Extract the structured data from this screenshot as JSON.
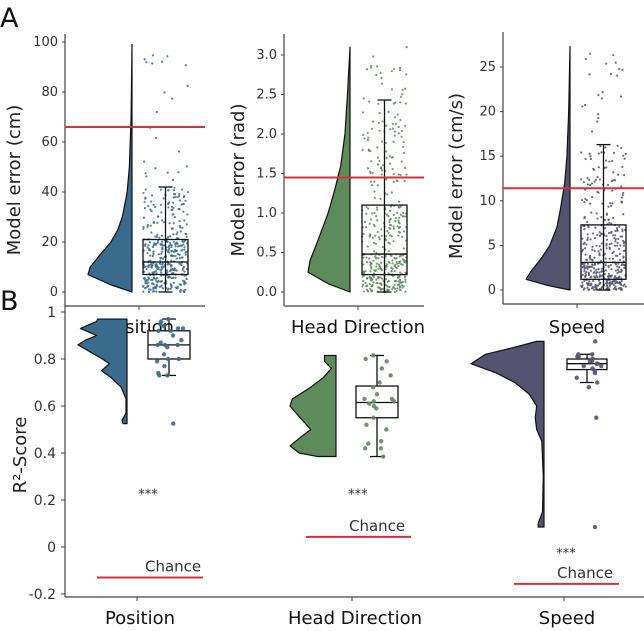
{
  "panel_labels": [
    "A",
    "B"
  ],
  "colors": {
    "position": "#3b6b8c",
    "head_direction": "#5e8b5c",
    "speed": "#54536f",
    "chance": "#d4313c"
  },
  "chart_data": [
    {
      "type": "raincloud",
      "panel": "A",
      "xlabel": "Position",
      "ylabel": "Model error (cm)",
      "yticks": [
        "0",
        "20",
        "40",
        "60",
        "80",
        "100"
      ],
      "ytick_values": [
        0,
        20,
        40,
        60,
        80,
        100
      ],
      "reference_line": 66,
      "box": {
        "whisker_low": 0,
        "q1": 7,
        "median": 12,
        "q3": 21,
        "whisker_high": 42,
        "max": 99
      },
      "density": [
        [
          0,
          0
        ],
        [
          3,
          0.5
        ],
        [
          7,
          1
        ],
        [
          10,
          0.95
        ],
        [
          15,
          0.72
        ],
        [
          20,
          0.48
        ],
        [
          25,
          0.32
        ],
        [
          30,
          0.22
        ],
        [
          40,
          0.11
        ],
        [
          50,
          0.06
        ],
        [
          60,
          0.04
        ],
        [
          70,
          0.02
        ],
        [
          85,
          0.01
        ],
        [
          99,
          0
        ]
      ],
      "color_key": "position"
    },
    {
      "type": "raincloud",
      "panel": "A",
      "xlabel": "Head Direction",
      "ylabel": "Model error (rad)",
      "yticks": [
        "0.0",
        "0.5",
        "1.0",
        "1.5",
        "2.0",
        "2.5",
        "3.0"
      ],
      "ytick_values": [
        0,
        0.5,
        1,
        1.5,
        2,
        2.5,
        3
      ],
      "reference_line": 1.45,
      "box": {
        "whisker_low": 0,
        "q1": 0.22,
        "median": 0.48,
        "q3": 1.1,
        "whisker_high": 2.43,
        "max": 3.1
      },
      "density": [
        [
          0,
          0
        ],
        [
          0.1,
          0.5
        ],
        [
          0.25,
          1
        ],
        [
          0.4,
          0.95
        ],
        [
          0.6,
          0.8
        ],
        [
          0.8,
          0.66
        ],
        [
          1.0,
          0.52
        ],
        [
          1.3,
          0.36
        ],
        [
          1.6,
          0.22
        ],
        [
          2.0,
          0.12
        ],
        [
          2.5,
          0.06
        ],
        [
          3.1,
          0
        ]
      ],
      "color_key": "head_direction"
    },
    {
      "type": "raincloud",
      "panel": "A",
      "xlabel": "Speed",
      "ylabel": "Model error (cm/s)",
      "yticks": [
        "0",
        "5",
        "10",
        "15",
        "20",
        "25"
      ],
      "ytick_values": [
        0,
        5,
        10,
        15,
        20,
        25
      ],
      "reference_line": 11.4,
      "box": {
        "whisker_low": 0,
        "q1": 1.2,
        "median": 3.1,
        "q3": 7.3,
        "whisker_high": 16.3,
        "max": 27.3
      },
      "density": [
        [
          0,
          0
        ],
        [
          0.5,
          0.5
        ],
        [
          1.2,
          1
        ],
        [
          2,
          0.9
        ],
        [
          3.5,
          0.66
        ],
        [
          5,
          0.46
        ],
        [
          7,
          0.3
        ],
        [
          9,
          0.22
        ],
        [
          12,
          0.12
        ],
        [
          15,
          0.07
        ],
        [
          20,
          0.03
        ],
        [
          27.3,
          0
        ]
      ],
      "color_key": "speed"
    },
    {
      "type": "raincloud",
      "panel": "B",
      "ylabel": "R²-Score",
      "ylim": [
        -0.2,
        1
      ],
      "yticks": [
        "-0.2",
        "0",
        "0.2",
        "0.4",
        "0.6",
        "0.8",
        "1"
      ],
      "ytick_values": [
        -0.2,
        0,
        0.2,
        0.4,
        0.6,
        0.8,
        1
      ],
      "chance_label": "Chance",
      "significance_label": "***",
      "groups": [
        {
          "name": "Position",
          "color_key": "position",
          "chance": -0.13,
          "significance_at": 0.24,
          "box": {
            "whisker_low": 0.73,
            "q1": 0.8,
            "median": 0.86,
            "q3": 0.92,
            "whisker_high": 0.97
          },
          "points": [
            0.97,
            0.96,
            0.95,
            0.94,
            0.93,
            0.93,
            0.92,
            0.92,
            0.9,
            0.88,
            0.87,
            0.86,
            0.86,
            0.86,
            0.85,
            0.82,
            0.8,
            0.8,
            0.79,
            0.77,
            0.74,
            0.73,
            0.73,
            0.525
          ],
          "density": [
            [
              0.525,
              0.08
            ],
            [
              0.54,
              0.1
            ],
            [
              0.57,
              0.02
            ],
            [
              0.63,
              0.02
            ],
            [
              0.68,
              0.12
            ],
            [
              0.72,
              0.32
            ],
            [
              0.75,
              0.52
            ],
            [
              0.78,
              0.36
            ],
            [
              0.8,
              0.5
            ],
            [
              0.83,
              0.75
            ],
            [
              0.86,
              1.0
            ],
            [
              0.88,
              0.85
            ],
            [
              0.9,
              0.62
            ],
            [
              0.93,
              0.95
            ],
            [
              0.96,
              0.62
            ],
            [
              0.97,
              0.6
            ]
          ]
        },
        {
          "name": "Head Direction",
          "color_key": "head_direction",
          "chance": 0.043,
          "significance_at": 0.24,
          "box": {
            "whisker_low": 0.385,
            "q1": 0.55,
            "median": 0.615,
            "q3": 0.685,
            "whisker_high": 0.815
          },
          "points": [
            0.815,
            0.8,
            0.79,
            0.76,
            0.73,
            0.7,
            0.68,
            0.65,
            0.63,
            0.63,
            0.62,
            0.62,
            0.61,
            0.6,
            0.59,
            0.55,
            0.52,
            0.5,
            0.45,
            0.44,
            0.42,
            0.42,
            0.385
          ],
          "density": [
            [
              0.385,
              0.4
            ],
            [
              0.4,
              0.8
            ],
            [
              0.43,
              1.0
            ],
            [
              0.47,
              0.75
            ],
            [
              0.5,
              0.55
            ],
            [
              0.55,
              0.78
            ],
            [
              0.6,
              1.0
            ],
            [
              0.63,
              0.95
            ],
            [
              0.68,
              0.55
            ],
            [
              0.72,
              0.28
            ],
            [
              0.76,
              0.1
            ],
            [
              0.79,
              0.25
            ],
            [
              0.815,
              0.25
            ]
          ]
        },
        {
          "name": "Speed",
          "color_key": "speed",
          "chance": -0.157,
          "significance_at": -0.01,
          "box": {
            "whisker_low": 0.7,
            "q1": 0.755,
            "median": 0.78,
            "q3": 0.8,
            "whisker_high": 0.82
          },
          "points": [
            0.875,
            0.82,
            0.82,
            0.81,
            0.81,
            0.8,
            0.8,
            0.79,
            0.79,
            0.78,
            0.78,
            0.77,
            0.77,
            0.76,
            0.75,
            0.74,
            0.72,
            0.7,
            0.68,
            0.55,
            0.085
          ],
          "density": [
            [
              0.085,
              0.08
            ],
            [
              0.1,
              0.08
            ],
            [
              0.15,
              0.02
            ],
            [
              0.3,
              0.01
            ],
            [
              0.45,
              0.03
            ],
            [
              0.5,
              0.1
            ],
            [
              0.55,
              0.12
            ],
            [
              0.6,
              0.1
            ],
            [
              0.65,
              0.2
            ],
            [
              0.7,
              0.4
            ],
            [
              0.74,
              0.65
            ],
            [
              0.78,
              1.0
            ],
            [
              0.82,
              0.8
            ],
            [
              0.85,
              0.4
            ],
            [
              0.875,
              0.1
            ]
          ]
        }
      ]
    }
  ]
}
